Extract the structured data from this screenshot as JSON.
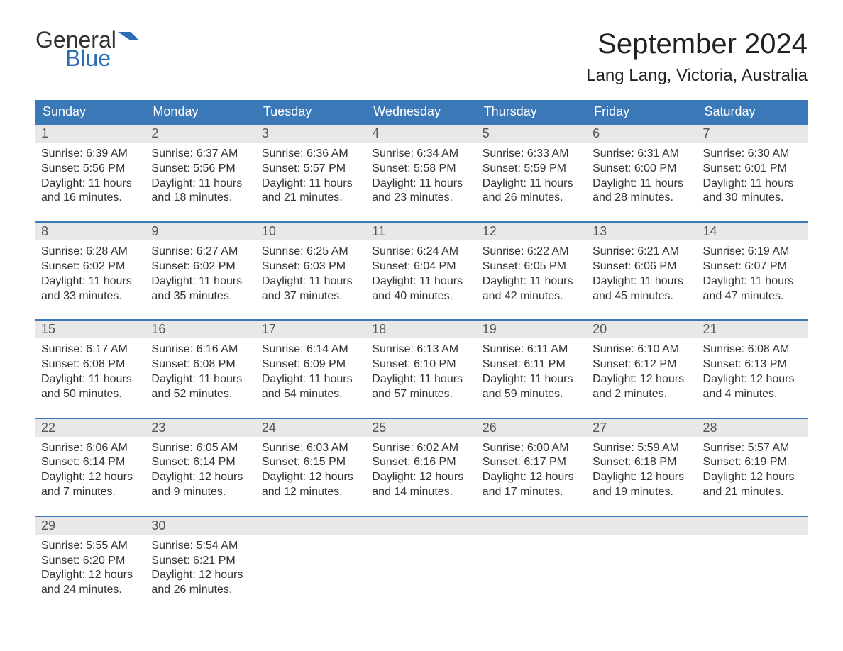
{
  "brand": {
    "part1": "General",
    "part2": "Blue",
    "part2_color": "#2a6db5"
  },
  "title": "September 2024",
  "location": "Lang Lang, Victoria, Australia",
  "header_bg": "#3a78b8",
  "daynum_bg": "#e8e8e8",
  "weekdays": [
    "Sunday",
    "Monday",
    "Tuesday",
    "Wednesday",
    "Thursday",
    "Friday",
    "Saturday"
  ],
  "weeks": [
    [
      {
        "n": "1",
        "sunrise": "Sunrise: 6:39 AM",
        "sunset": "Sunset: 5:56 PM",
        "d1": "Daylight: 11 hours",
        "d2": "and 16 minutes."
      },
      {
        "n": "2",
        "sunrise": "Sunrise: 6:37 AM",
        "sunset": "Sunset: 5:56 PM",
        "d1": "Daylight: 11 hours",
        "d2": "and 18 minutes."
      },
      {
        "n": "3",
        "sunrise": "Sunrise: 6:36 AM",
        "sunset": "Sunset: 5:57 PM",
        "d1": "Daylight: 11 hours",
        "d2": "and 21 minutes."
      },
      {
        "n": "4",
        "sunrise": "Sunrise: 6:34 AM",
        "sunset": "Sunset: 5:58 PM",
        "d1": "Daylight: 11 hours",
        "d2": "and 23 minutes."
      },
      {
        "n": "5",
        "sunrise": "Sunrise: 6:33 AM",
        "sunset": "Sunset: 5:59 PM",
        "d1": "Daylight: 11 hours",
        "d2": "and 26 minutes."
      },
      {
        "n": "6",
        "sunrise": "Sunrise: 6:31 AM",
        "sunset": "Sunset: 6:00 PM",
        "d1": "Daylight: 11 hours",
        "d2": "and 28 minutes."
      },
      {
        "n": "7",
        "sunrise": "Sunrise: 6:30 AM",
        "sunset": "Sunset: 6:01 PM",
        "d1": "Daylight: 11 hours",
        "d2": "and 30 minutes."
      }
    ],
    [
      {
        "n": "8",
        "sunrise": "Sunrise: 6:28 AM",
        "sunset": "Sunset: 6:02 PM",
        "d1": "Daylight: 11 hours",
        "d2": "and 33 minutes."
      },
      {
        "n": "9",
        "sunrise": "Sunrise: 6:27 AM",
        "sunset": "Sunset: 6:02 PM",
        "d1": "Daylight: 11 hours",
        "d2": "and 35 minutes."
      },
      {
        "n": "10",
        "sunrise": "Sunrise: 6:25 AM",
        "sunset": "Sunset: 6:03 PM",
        "d1": "Daylight: 11 hours",
        "d2": "and 37 minutes."
      },
      {
        "n": "11",
        "sunrise": "Sunrise: 6:24 AM",
        "sunset": "Sunset: 6:04 PM",
        "d1": "Daylight: 11 hours",
        "d2": "and 40 minutes."
      },
      {
        "n": "12",
        "sunrise": "Sunrise: 6:22 AM",
        "sunset": "Sunset: 6:05 PM",
        "d1": "Daylight: 11 hours",
        "d2": "and 42 minutes."
      },
      {
        "n": "13",
        "sunrise": "Sunrise: 6:21 AM",
        "sunset": "Sunset: 6:06 PM",
        "d1": "Daylight: 11 hours",
        "d2": "and 45 minutes."
      },
      {
        "n": "14",
        "sunrise": "Sunrise: 6:19 AM",
        "sunset": "Sunset: 6:07 PM",
        "d1": "Daylight: 11 hours",
        "d2": "and 47 minutes."
      }
    ],
    [
      {
        "n": "15",
        "sunrise": "Sunrise: 6:17 AM",
        "sunset": "Sunset: 6:08 PM",
        "d1": "Daylight: 11 hours",
        "d2": "and 50 minutes."
      },
      {
        "n": "16",
        "sunrise": "Sunrise: 6:16 AM",
        "sunset": "Sunset: 6:08 PM",
        "d1": "Daylight: 11 hours",
        "d2": "and 52 minutes."
      },
      {
        "n": "17",
        "sunrise": "Sunrise: 6:14 AM",
        "sunset": "Sunset: 6:09 PM",
        "d1": "Daylight: 11 hours",
        "d2": "and 54 minutes."
      },
      {
        "n": "18",
        "sunrise": "Sunrise: 6:13 AM",
        "sunset": "Sunset: 6:10 PM",
        "d1": "Daylight: 11 hours",
        "d2": "and 57 minutes."
      },
      {
        "n": "19",
        "sunrise": "Sunrise: 6:11 AM",
        "sunset": "Sunset: 6:11 PM",
        "d1": "Daylight: 11 hours",
        "d2": "and 59 minutes."
      },
      {
        "n": "20",
        "sunrise": "Sunrise: 6:10 AM",
        "sunset": "Sunset: 6:12 PM",
        "d1": "Daylight: 12 hours",
        "d2": "and 2 minutes."
      },
      {
        "n": "21",
        "sunrise": "Sunrise: 6:08 AM",
        "sunset": "Sunset: 6:13 PM",
        "d1": "Daylight: 12 hours",
        "d2": "and 4 minutes."
      }
    ],
    [
      {
        "n": "22",
        "sunrise": "Sunrise: 6:06 AM",
        "sunset": "Sunset: 6:14 PM",
        "d1": "Daylight: 12 hours",
        "d2": "and 7 minutes."
      },
      {
        "n": "23",
        "sunrise": "Sunrise: 6:05 AM",
        "sunset": "Sunset: 6:14 PM",
        "d1": "Daylight: 12 hours",
        "d2": "and 9 minutes."
      },
      {
        "n": "24",
        "sunrise": "Sunrise: 6:03 AM",
        "sunset": "Sunset: 6:15 PM",
        "d1": "Daylight: 12 hours",
        "d2": "and 12 minutes."
      },
      {
        "n": "25",
        "sunrise": "Sunrise: 6:02 AM",
        "sunset": "Sunset: 6:16 PM",
        "d1": "Daylight: 12 hours",
        "d2": "and 14 minutes."
      },
      {
        "n": "26",
        "sunrise": "Sunrise: 6:00 AM",
        "sunset": "Sunset: 6:17 PM",
        "d1": "Daylight: 12 hours",
        "d2": "and 17 minutes."
      },
      {
        "n": "27",
        "sunrise": "Sunrise: 5:59 AM",
        "sunset": "Sunset: 6:18 PM",
        "d1": "Daylight: 12 hours",
        "d2": "and 19 minutes."
      },
      {
        "n": "28",
        "sunrise": "Sunrise: 5:57 AM",
        "sunset": "Sunset: 6:19 PM",
        "d1": "Daylight: 12 hours",
        "d2": "and 21 minutes."
      }
    ],
    [
      {
        "n": "29",
        "sunrise": "Sunrise: 5:55 AM",
        "sunset": "Sunset: 6:20 PM",
        "d1": "Daylight: 12 hours",
        "d2": "and 24 minutes."
      },
      {
        "n": "30",
        "sunrise": "Sunrise: 5:54 AM",
        "sunset": "Sunset: 6:21 PM",
        "d1": "Daylight: 12 hours",
        "d2": "and 26 minutes."
      },
      {
        "empty": true
      },
      {
        "empty": true
      },
      {
        "empty": true
      },
      {
        "empty": true
      },
      {
        "empty": true
      }
    ]
  ]
}
